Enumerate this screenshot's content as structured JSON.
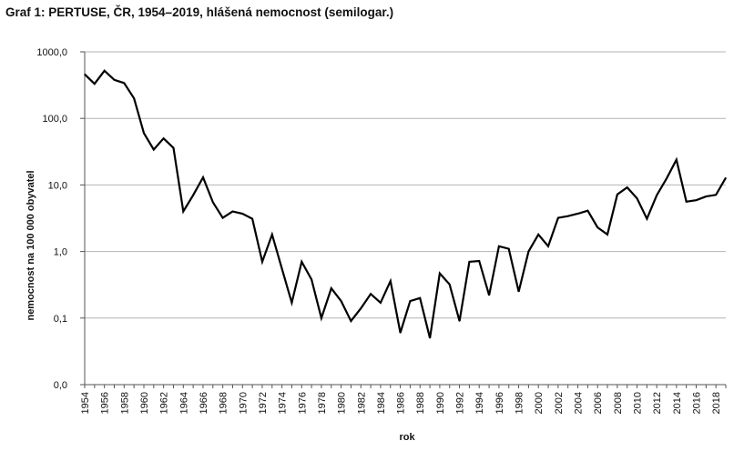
{
  "title": "Graf 1: PERTUSE, ČR, 1954–2019, hlášená nemocnost (semilogar.)",
  "chart_data": {
    "type": "line",
    "title": "Graf 1: PERTUSE, ČR, 1954–2019, hlášená nemocnost (semilogar.)",
    "xlabel": "rok",
    "ylabel": "nemocnost na 100 000 obyvatel",
    "y_scale": "log",
    "ylim": [
      0.01,
      1000
    ],
    "y_ticks": [
      0.01,
      0.1,
      1,
      10,
      100,
      1000
    ],
    "y_tick_labels": [
      "0,0",
      "0,1",
      "1,0",
      "10,0",
      "100,0",
      "1000,0"
    ],
    "x_ticks": [
      1954,
      1956,
      1958,
      1960,
      1962,
      1964,
      1966,
      1968,
      1970,
      1972,
      1974,
      1976,
      1978,
      1980,
      1982,
      1984,
      1986,
      1988,
      1990,
      1992,
      1994,
      1996,
      1998,
      2000,
      2002,
      2004,
      2006,
      2008,
      2010,
      2012,
      2014,
      2016,
      2018
    ],
    "x_tick_labels": [
      "1954",
      "1956",
      "1958",
      "1960",
      "1962",
      "1964",
      "1966",
      "1968",
      "1970",
      "1972",
      "1974",
      "1976",
      "1978",
      "1980",
      "1982",
      "1984",
      "1986",
      "1988",
      "1990",
      "1992",
      "1994",
      "1996",
      "1998",
      "2000",
      "2002",
      "2004",
      "2006",
      "2008",
      "2010",
      "2012",
      "2014",
      "2016",
      "2018"
    ],
    "grid": true,
    "legend": "none",
    "line_color": "#000000",
    "grid_color": "#b3b3b3",
    "series": [
      {
        "x": [
          1954,
          1955,
          1956,
          1957,
          1958,
          1959,
          1960,
          1961,
          1962,
          1963,
          1964,
          1965,
          1966,
          1967,
          1968,
          1969,
          1970,
          1971,
          1972,
          1973,
          1974,
          1975,
          1976,
          1977,
          1978,
          1979,
          1980,
          1981,
          1982,
          1983,
          1984,
          1985,
          1986,
          1987,
          1988,
          1989,
          1990,
          1991,
          1992,
          1993,
          1994,
          1995,
          1996,
          1997,
          1998,
          1999,
          2000,
          2001,
          2002,
          2003,
          2004,
          2005,
          2006,
          2007,
          2008,
          2009,
          2010,
          2011,
          2012,
          2013,
          2014,
          2015,
          2016,
          2017,
          2018,
          2019
        ],
        "values": [
          460,
          330,
          520,
          380,
          340,
          200,
          60,
          34,
          50,
          36,
          4,
          7,
          13,
          5.5,
          3.2,
          4,
          3.7,
          3.1,
          0.7,
          1.8,
          0.55,
          0.17,
          0.7,
          0.38,
          0.1,
          0.28,
          0.18,
          0.09,
          0.14,
          0.23,
          0.17,
          0.36,
          0.06,
          0.18,
          0.2,
          0.05,
          0.47,
          0.32,
          0.09,
          0.7,
          0.72,
          0.22,
          1.2,
          1.1,
          0.25,
          1.0,
          1.8,
          1.2,
          3.2,
          3.4,
          3.7,
          4.1,
          2.3,
          1.8,
          7.2,
          9.2,
          6.3,
          3.1,
          7,
          12.5,
          24,
          5.6,
          5.9,
          6.7,
          7.1,
          12.8
        ]
      }
    ]
  }
}
